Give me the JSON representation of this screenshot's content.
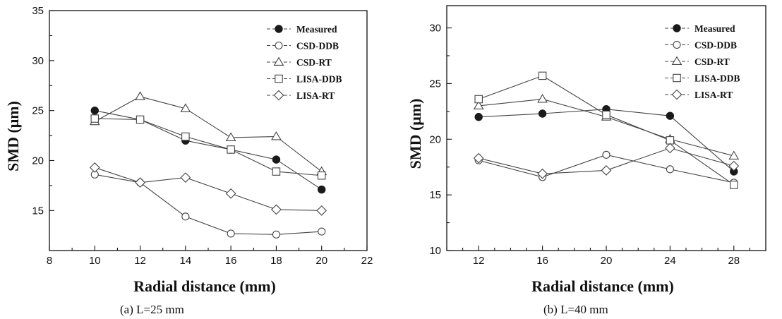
{
  "chart_data": [
    {
      "type": "line",
      "panel": "a",
      "caption": "(a)  L=25 mm",
      "xlabel": "Radial distance (mm)",
      "ylabel": "SMD (μm)",
      "xlim": [
        8,
        22
      ],
      "ylim": [
        11,
        35
      ],
      "xticks": [
        8,
        10,
        12,
        14,
        16,
        18,
        20,
        22
      ],
      "yticks": [
        15,
        20,
        25,
        30,
        35
      ],
      "x": [
        10,
        12,
        14,
        16,
        18,
        20
      ],
      "legend_position": "top-right",
      "series": [
        {
          "name": "Measured",
          "marker": "filled-circle",
          "values": [
            25.0,
            24.1,
            22.0,
            21.1,
            20.1,
            17.1
          ]
        },
        {
          "name": "CSD-DDB",
          "marker": "open-circle",
          "values": [
            18.6,
            17.8,
            14.4,
            12.7,
            12.6,
            12.9
          ]
        },
        {
          "name": "CSD-RT",
          "marker": "open-triangle",
          "values": [
            23.9,
            26.4,
            25.2,
            22.3,
            22.4,
            18.9
          ]
        },
        {
          "name": "LISA-DDB",
          "marker": "open-square",
          "values": [
            24.2,
            24.1,
            22.4,
            21.1,
            18.9,
            18.5
          ]
        },
        {
          "name": "LISA-RT",
          "marker": "open-diamond",
          "values": [
            19.3,
            17.8,
            18.3,
            16.7,
            15.1,
            15.0
          ]
        }
      ]
    },
    {
      "type": "line",
      "panel": "b",
      "caption": "(b)  L=40 mm",
      "xlabel": "Radial distance (mm)",
      "ylabel": "SMD (μm)",
      "xlim": [
        10,
        30
      ],
      "ylim": [
        10,
        32
      ],
      "xticks": [
        12,
        16,
        20,
        24,
        28
      ],
      "yticks": [
        10,
        15,
        20,
        25,
        30
      ],
      "x": [
        12,
        16,
        20,
        24,
        28
      ],
      "legend_position": "top-right",
      "series": [
        {
          "name": "Measured",
          "marker": "filled-circle",
          "values": [
            22.0,
            22.3,
            22.7,
            22.1,
            17.1
          ]
        },
        {
          "name": "CSD-DDB",
          "marker": "open-circle",
          "values": [
            18.1,
            16.6,
            18.6,
            17.3,
            16.1
          ]
        },
        {
          "name": "CSD-RT",
          "marker": "open-triangle",
          "values": [
            23.0,
            23.6,
            22.0,
            20.0,
            18.5
          ]
        },
        {
          "name": "LISA-DDB",
          "marker": "open-square",
          "values": [
            23.6,
            25.7,
            22.2,
            19.9,
            15.9
          ]
        },
        {
          "name": "LISA-RT",
          "marker": "open-diamond",
          "values": [
            18.3,
            16.9,
            17.2,
            19.2,
            17.6
          ]
        }
      ]
    }
  ]
}
